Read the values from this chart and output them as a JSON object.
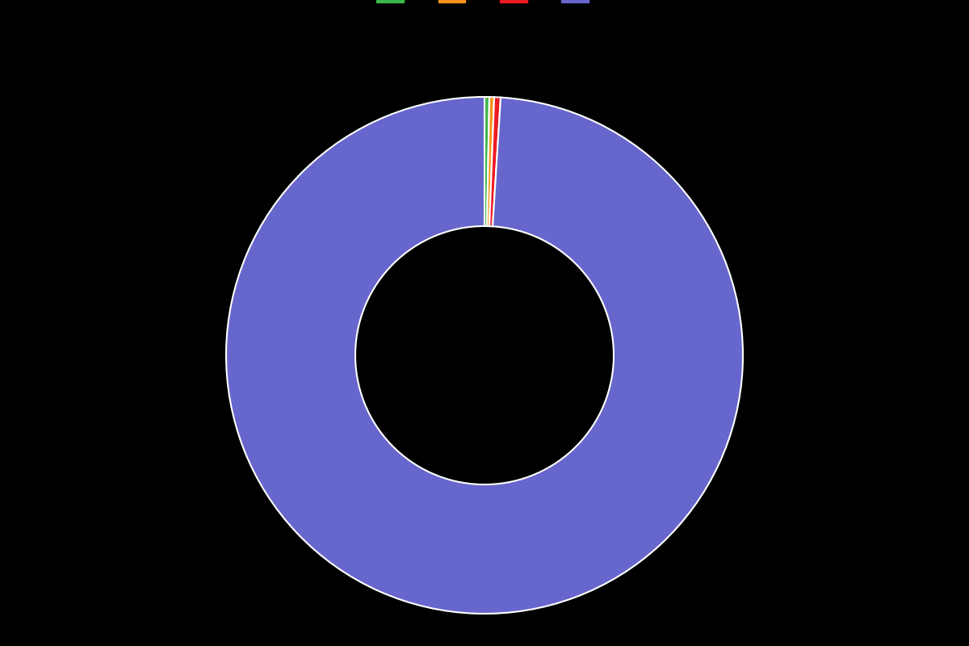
{
  "values": [
    0.3,
    0.3,
    0.4,
    99.0
  ],
  "colors": [
    "#3cb54a",
    "#f7941d",
    "#ed1c24",
    "#6666cc"
  ],
  "legend_labels": [
    "",
    "",
    "",
    ""
  ],
  "background_color": "#000000",
  "wedge_edge_color": "#ffffff",
  "wedge_linewidth": 1.5,
  "donut_hole": 0.5,
  "startangle": 90,
  "figsize": [
    12,
    8
  ],
  "dpi": 100
}
